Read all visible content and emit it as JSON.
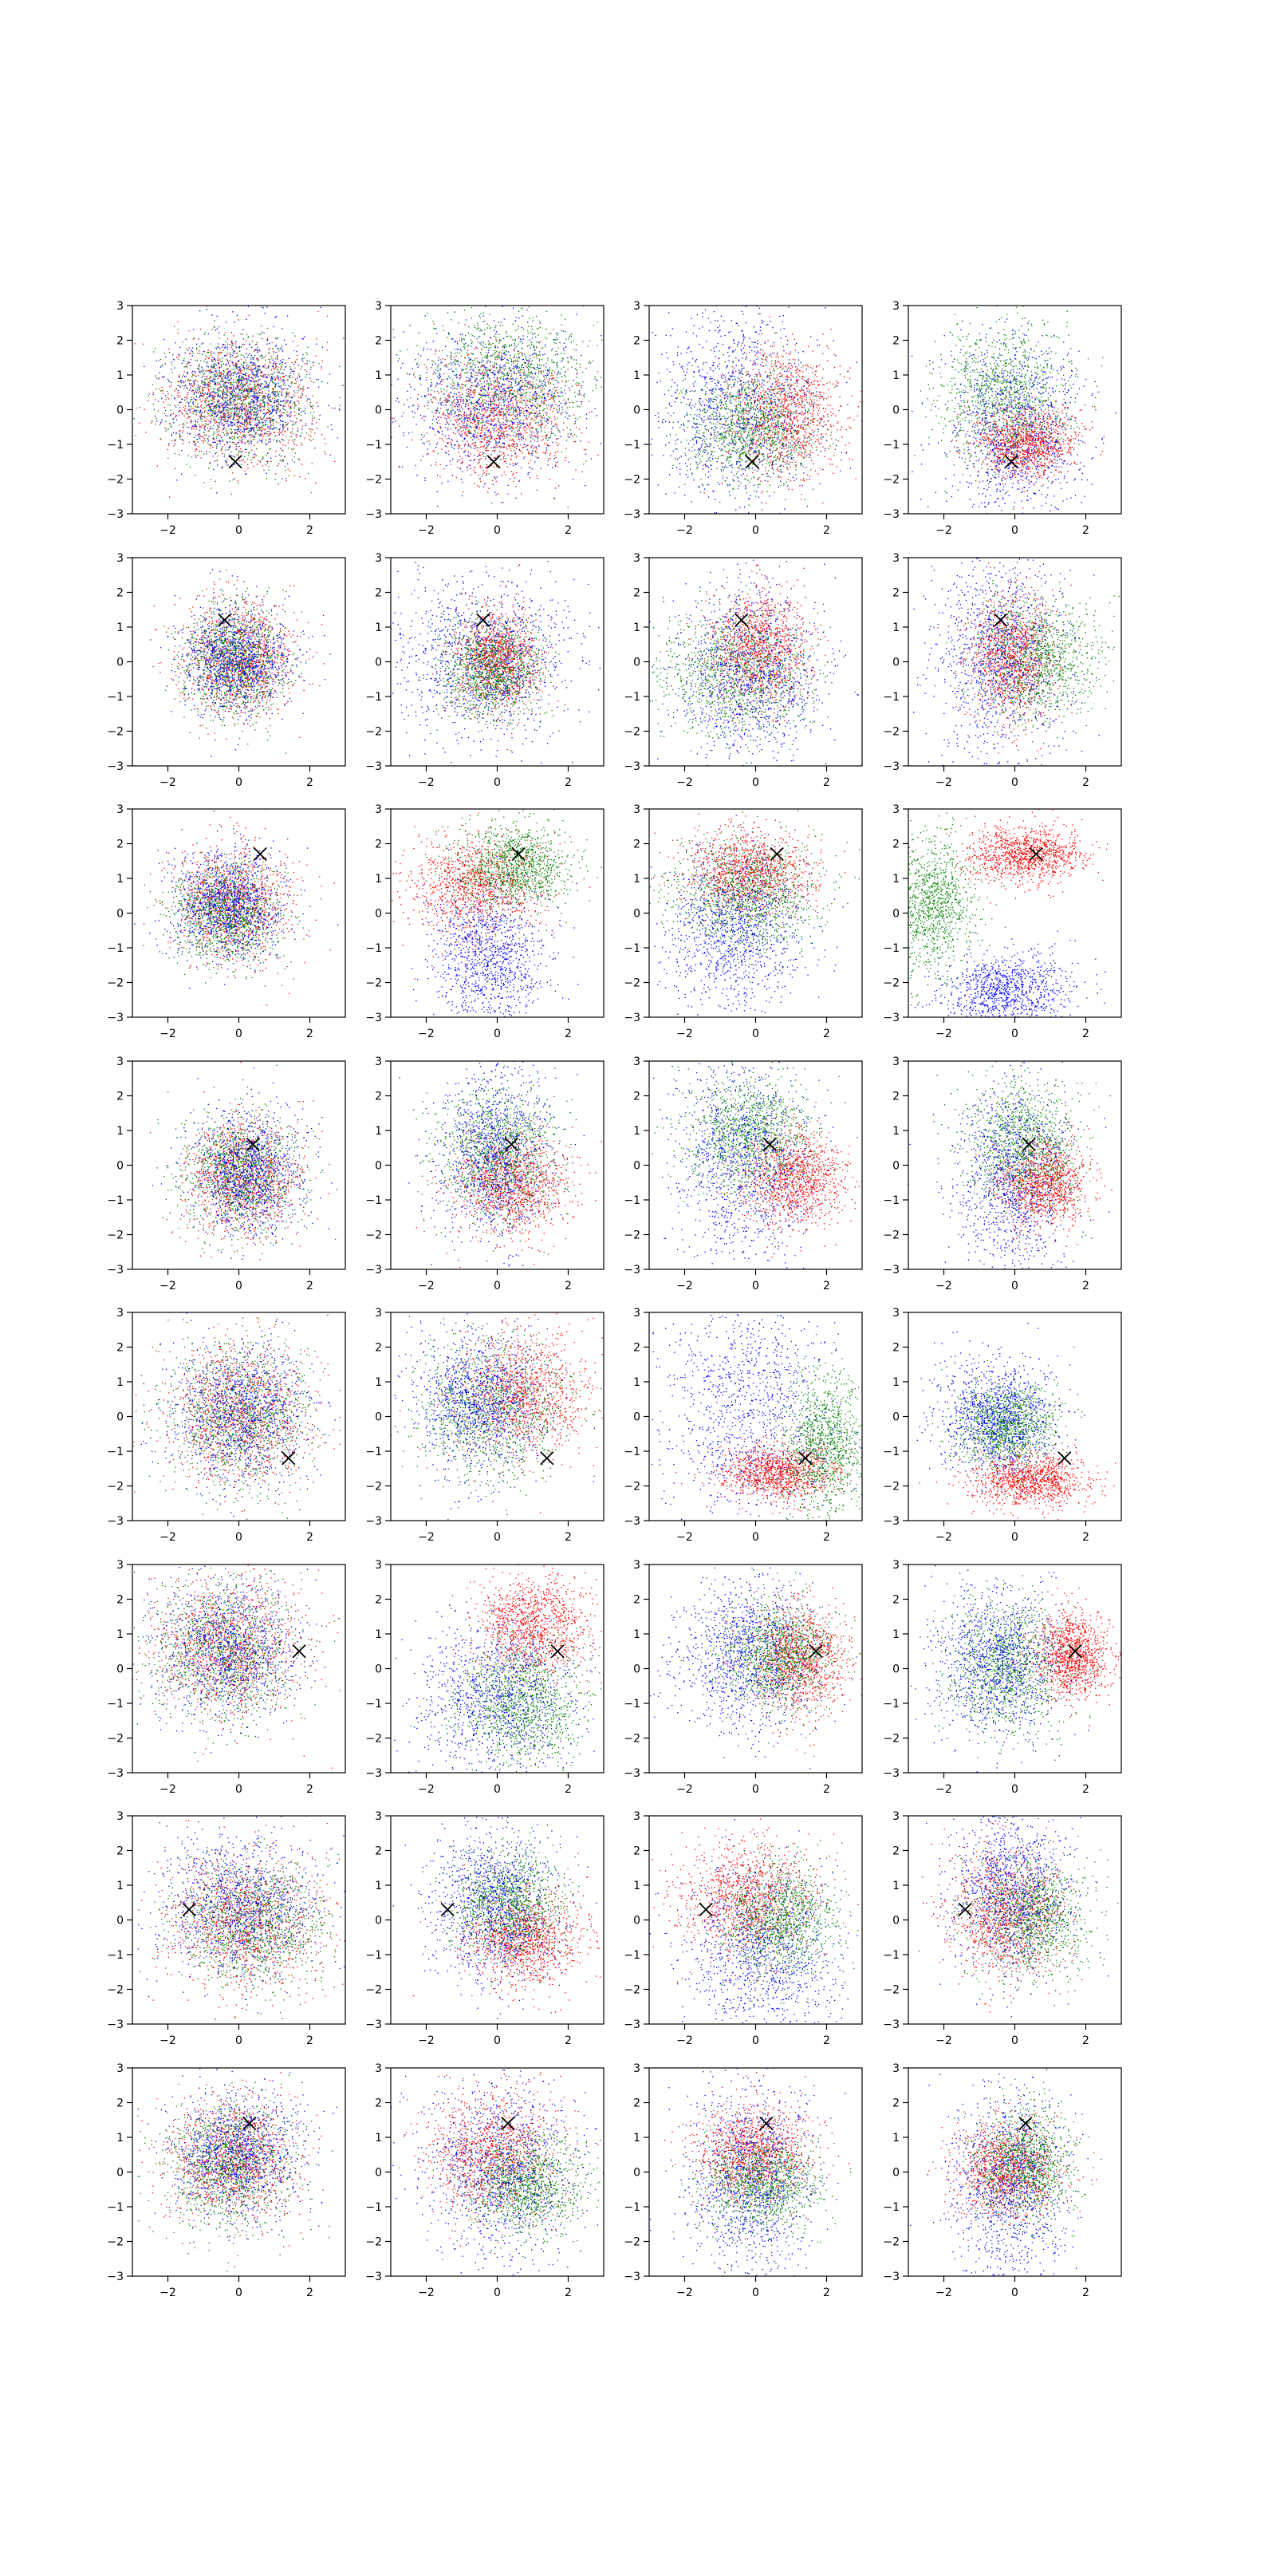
{
  "colors": {
    "red": "#ff0000",
    "green": "#008000",
    "blue": "#0000ff",
    "marker": "#000000"
  },
  "axes": {
    "xlim": [
      -3,
      3
    ],
    "ylim": [
      -3,
      3
    ],
    "xticks": [
      -2,
      0,
      2
    ],
    "yticks": [
      -3,
      -2,
      -1,
      0,
      1,
      2,
      3
    ],
    "grid": false
  },
  "chart_data": {
    "type": "scatter",
    "layout": "8 rows x 4 columns of scatter panels",
    "series_colors": [
      "red",
      "green",
      "blue"
    ],
    "panels": [
      [
        {
          "marker": [
            -0.1,
            -1.5
          ],
          "clusters": {
            "red": [
              0,
              0.2,
              1.0,
              0.9
            ],
            "green": [
              0,
              0.3,
              1.0,
              0.9
            ],
            "blue": [
              0,
              0.4,
              1.0,
              0.9
            ]
          }
        },
        {
          "marker": [
            -0.1,
            -1.5
          ],
          "clusters": {
            "red": [
              0,
              -0.2,
              1.0,
              0.9
            ],
            "green": [
              0.3,
              0.9,
              1.2,
              1.0
            ],
            "blue": [
              -0.3,
              0.3,
              1.3,
              1.1
            ]
          }
        },
        {
          "marker": [
            -0.1,
            -1.5
          ],
          "clusters": {
            "red": [
              0.8,
              -0.1,
              0.8,
              0.9
            ],
            "green": [
              -0.2,
              -0.5,
              0.9,
              0.8
            ],
            "blue": [
              -0.6,
              0.1,
              1.2,
              1.4
            ]
          }
        },
        {
          "marker": [
            -0.1,
            -1.5
          ],
          "clusters": {
            "red": [
              0.3,
              -0.9,
              0.7,
              0.5
            ],
            "green": [
              -0.3,
              0.4,
              0.9,
              1.0
            ],
            "blue": [
              0,
              -0.6,
              1.0,
              1.4
            ]
          }
        }
      ],
      [
        {
          "marker": [
            -0.4,
            1.2
          ],
          "clusters": {
            "red": [
              0,
              0.1,
              0.8,
              0.8
            ],
            "green": [
              -0.1,
              0,
              0.7,
              0.8
            ],
            "blue": [
              -0.1,
              0.1,
              0.8,
              0.8
            ]
          }
        },
        {
          "marker": [
            -0.4,
            1.2
          ],
          "clusters": {
            "red": [
              0,
              0.1,
              0.6,
              0.7
            ],
            "green": [
              -0.2,
              -0.2,
              0.7,
              0.7
            ],
            "blue": [
              -0.4,
              0.1,
              1.3,
              1.2
            ]
          }
        },
        {
          "marker": [
            -0.4,
            1.2
          ],
          "clusters": {
            "red": [
              0.1,
              0.4,
              0.7,
              0.8
            ],
            "green": [
              -0.6,
              -0.3,
              1.1,
              0.9
            ],
            "blue": [
              -0.2,
              -0.4,
              1.0,
              1.3
            ]
          }
        },
        {
          "marker": [
            -0.4,
            1.2
          ],
          "clusters": {
            "red": [
              -0.1,
              0.1,
              0.6,
              0.9
            ],
            "green": [
              0.6,
              0.1,
              0.9,
              0.9
            ],
            "blue": [
              -0.4,
              0.2,
              0.9,
              1.5
            ]
          }
        }
      ],
      [
        {
          "marker": [
            0.6,
            1.7
          ],
          "clusters": {
            "red": [
              -0.2,
              0.3,
              0.8,
              0.8
            ],
            "green": [
              -0.4,
              0,
              0.8,
              0.7
            ],
            "blue": [
              -0.3,
              0.3,
              0.8,
              0.8
            ]
          }
        },
        {
          "marker": [
            0.6,
            1.7
          ],
          "clusters": {
            "red": [
              -0.6,
              0.8,
              0.9,
              0.7
            ],
            "green": [
              0.5,
              1.4,
              0.8,
              0.6
            ],
            "blue": [
              -0.2,
              -1.3,
              0.8,
              1.0
            ]
          }
        },
        {
          "marker": [
            0.6,
            1.7
          ],
          "clusters": {
            "red": [
              -0.2,
              1.2,
              0.9,
              0.6
            ],
            "green": [
              -0.3,
              0.5,
              1.1,
              0.8
            ],
            "blue": [
              -0.6,
              -0.5,
              1.0,
              1.2
            ]
          }
        },
        {
          "marker": [
            0.6,
            1.7
          ],
          "clusters": {
            "red": [
              0.3,
              1.7,
              0.8,
              0.4
            ],
            "green": [
              -2.3,
              0.3,
              0.6,
              1.0
            ],
            "blue": [
              -0.2,
              -2.3,
              0.9,
              0.6
            ]
          }
        }
      ],
      [
        {
          "marker": [
            0.4,
            0.6
          ],
          "clusters": {
            "red": [
              0.1,
              -0.3,
              0.8,
              0.8
            ],
            "green": [
              0,
              -0.2,
              0.8,
              0.8
            ],
            "blue": [
              0.2,
              -0.2,
              0.8,
              0.9
            ]
          }
        },
        {
          "marker": [
            0.4,
            0.6
          ],
          "clusters": {
            "red": [
              0.4,
              -0.5,
              0.8,
              0.7
            ],
            "green": [
              0,
              0.4,
              0.8,
              0.9
            ],
            "blue": [
              -0.1,
              0.4,
              0.8,
              1.3
            ]
          }
        },
        {
          "marker": [
            0.4,
            0.6
          ],
          "clusters": {
            "red": [
              1.1,
              -0.4,
              0.7,
              0.7
            ],
            "green": [
              -0.2,
              0.9,
              0.9,
              0.8
            ],
            "blue": [
              -0.3,
              0.1,
              1.0,
              1.5
            ]
          }
        },
        {
          "marker": [
            0.4,
            0.6
          ],
          "clusters": {
            "red": [
              0.8,
              -0.5,
              0.6,
              0.6
            ],
            "green": [
              0.2,
              0.6,
              0.8,
              0.9
            ],
            "blue": [
              -0.1,
              -0.4,
              0.8,
              1.5
            ]
          }
        }
      ],
      [
        {
          "marker": [
            1.4,
            -1.2
          ],
          "clusters": {
            "red": [
              0,
              0,
              1.0,
              1.0
            ],
            "green": [
              0,
              0,
              1.0,
              1.0
            ],
            "blue": [
              0,
              0.1,
              1.0,
              1.0
            ]
          }
        },
        {
          "marker": [
            1.4,
            -1.2
          ],
          "clusters": {
            "red": [
              0.7,
              0.6,
              0.9,
              0.9
            ],
            "green": [
              -0.2,
              0.2,
              1.0,
              1.0
            ],
            "blue": [
              -0.5,
              0.5,
              0.9,
              1.0
            ]
          }
        },
        {
          "marker": [
            1.4,
            -1.2
          ],
          "clusters": {
            "red": [
              0.6,
              -1.6,
              0.8,
              0.4
            ],
            "green": [
              1.9,
              -0.8,
              0.6,
              1.0
            ],
            "blue": [
              -0.3,
              0.2,
              1.2,
              1.8
            ]
          }
        },
        {
          "marker": [
            1.4,
            -1.2
          ],
          "clusters": {
            "red": [
              0.4,
              -1.8,
              0.8,
              0.4
            ],
            "green": [
              -0.2,
              -0.3,
              0.7,
              0.6
            ],
            "blue": [
              -0.5,
              0,
              0.8,
              0.8
            ]
          }
        }
      ],
      [
        {
          "marker": [
            1.7,
            0.5
          ],
          "clusters": {
            "red": [
              -0.4,
              0.6,
              1.0,
              1.0
            ],
            "green": [
              -0.4,
              0.5,
              1.0,
              1.0
            ],
            "blue": [
              -0.3,
              0.6,
              1.0,
              1.0
            ]
          }
        },
        {
          "marker": [
            1.7,
            0.5
          ],
          "clusters": {
            "red": [
              1.0,
              1.3,
              0.8,
              0.7
            ],
            "green": [
              0.7,
              -1.0,
              0.9,
              0.9
            ],
            "blue": [
              0,
              -0.8,
              1.2,
              1.1
            ]
          }
        },
        {
          "marker": [
            1.7,
            0.5
          ],
          "clusters": {
            "red": [
              1.2,
              0.3,
              0.7,
              0.8
            ],
            "green": [
              0.6,
              0.4,
              0.8,
              0.8
            ],
            "blue": [
              -0.3,
              0.4,
              1.0,
              1.1
            ]
          }
        },
        {
          "marker": [
            1.7,
            0.5
          ],
          "clusters": {
            "red": [
              1.6,
              0.4,
              0.5,
              0.6
            ],
            "green": [
              -0.2,
              0.1,
              0.8,
              0.9
            ],
            "blue": [
              -0.5,
              0.2,
              0.9,
              1.1
            ]
          }
        }
      ],
      [
        {
          "marker": [
            -1.4,
            0.3
          ],
          "clusters": {
            "red": [
              0.2,
              0,
              1.1,
              1.0
            ],
            "green": [
              0.4,
              -0.1,
              1.0,
              0.9
            ],
            "blue": [
              0,
              0.4,
              1.1,
              1.0
            ]
          }
        },
        {
          "marker": [
            -1.4,
            0.3
          ],
          "clusters": {
            "red": [
              0.8,
              -0.5,
              0.8,
              0.7
            ],
            "green": [
              0.3,
              0.5,
              0.8,
              0.8
            ],
            "blue": [
              -0.1,
              0.4,
              0.9,
              1.1
            ]
          }
        },
        {
          "marker": [
            -1.4,
            0.3
          ],
          "clusters": {
            "red": [
              -0.3,
              0.6,
              0.9,
              0.8
            ],
            "green": [
              0.7,
              0,
              0.8,
              0.8
            ],
            "blue": [
              0.1,
              -1.0,
              1.1,
              1.3
            ]
          }
        },
        {
          "marker": [
            -1.4,
            0.3
          ],
          "clusters": {
            "red": [
              -0.2,
              0.2,
              0.8,
              0.9
            ],
            "green": [
              0.5,
              0.1,
              0.8,
              0.8
            ],
            "blue": [
              -0.2,
              0.9,
              0.8,
              1.2
            ]
          }
        }
      ],
      [
        {
          "marker": [
            0.3,
            1.4
          ],
          "clusters": {
            "red": [
              -0.2,
              0.4,
              0.9,
              0.9
            ],
            "green": [
              -0.3,
              0.2,
              0.9,
              0.9
            ],
            "blue": [
              0,
              0.5,
              0.9,
              0.9
            ]
          }
        },
        {
          "marker": [
            0.3,
            1.4
          ],
          "clusters": {
            "red": [
              -0.1,
              0.5,
              0.9,
              0.9
            ],
            "green": [
              0.8,
              -0.4,
              0.8,
              0.7
            ],
            "blue": [
              0.1,
              0.1,
              1.1,
              1.3
            ]
          }
        },
        {
          "marker": [
            0.3,
            1.4
          ],
          "clusters": {
            "red": [
              -0.1,
              0.6,
              0.8,
              0.7
            ],
            "green": [
              0.2,
              -0.3,
              0.8,
              0.7
            ],
            "blue": [
              -0.2,
              -0.2,
              0.9,
              1.4
            ]
          }
        },
        {
          "marker": [
            0.3,
            1.4
          ],
          "clusters": {
            "red": [
              -0.2,
              0.1,
              0.7,
              0.7
            ],
            "green": [
              0.3,
              0.3,
              0.7,
              0.8
            ],
            "blue": [
              -0.2,
              -0.5,
              0.8,
              1.5
            ]
          }
        }
      ]
    ]
  }
}
